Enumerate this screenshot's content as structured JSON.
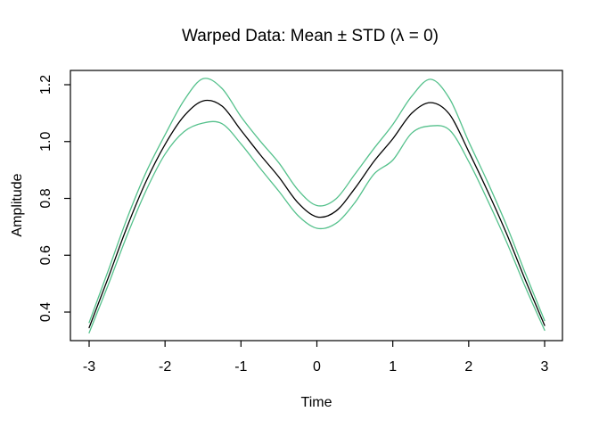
{
  "figure": {
    "title": "Warped Data: Mean ± STD (λ = 0)",
    "x_axis_label": "Time",
    "y_axis_label": "Amplitude"
  },
  "chart_data": {
    "type": "line",
    "title": "Warped Data: Mean ± STD (λ = 0)",
    "xlabel": "Time",
    "ylabel": "Amplitude",
    "xlim": [
      -3.25,
      3.25
    ],
    "ylim": [
      0.3,
      1.25
    ],
    "x_ticks": [
      -3,
      -2,
      -1,
      0,
      1,
      2,
      3
    ],
    "x_tick_labels": [
      "-3",
      "-2",
      "-1",
      "0",
      "1",
      "2",
      "3"
    ],
    "y_ticks": [
      0.4,
      0.6,
      0.8,
      1.0,
      1.2
    ],
    "y_tick_labels": [
      "0.4",
      "0.6",
      "0.8",
      "1.0",
      "1.2"
    ],
    "grid": false,
    "legend": "none",
    "frame": "box",
    "background_color": "#ffffff",
    "x": [
      -3,
      -2.75,
      -2.5,
      -2.25,
      -2,
      -1.75,
      -1.5,
      -1.25,
      -1,
      -0.75,
      -0.5,
      -0.25,
      0,
      0.25,
      0.5,
      0.75,
      1,
      1.25,
      1.5,
      1.75,
      2,
      2.25,
      2.5,
      2.75,
      3
    ],
    "series": [
      {
        "name": "mean_plus_std",
        "color": "#55c18c",
        "line_width": 1.3,
        "values": [
          0.363,
          0.545,
          0.73,
          0.892,
          1.024,
          1.145,
          1.221,
          1.187,
          1.088,
          1.003,
          0.925,
          0.83,
          0.775,
          0.798,
          0.885,
          0.975,
          1.06,
          1.16,
          1.219,
          1.15,
          1.0,
          0.857,
          0.704,
          0.534,
          0.37
        ]
      },
      {
        "name": "mean_minus_std",
        "color": "#55c18c",
        "line_width": 1.3,
        "values": [
          0.327,
          0.495,
          0.67,
          0.828,
          0.956,
          1.035,
          1.065,
          1.063,
          0.992,
          0.907,
          0.825,
          0.74,
          0.695,
          0.712,
          0.785,
          0.885,
          0.935,
          1.03,
          1.055,
          1.04,
          0.93,
          0.793,
          0.646,
          0.486,
          0.336
        ]
      },
      {
        "name": "mean",
        "color": "#000000",
        "line_width": 1.3,
        "values": [
          0.345,
          0.52,
          0.7,
          0.86,
          0.99,
          1.09,
          1.143,
          1.125,
          1.04,
          0.955,
          0.875,
          0.785,
          0.735,
          0.755,
          0.835,
          0.93,
          1.01,
          1.1,
          1.137,
          1.095,
          0.965,
          0.825,
          0.675,
          0.51,
          0.353
        ]
      }
    ]
  }
}
